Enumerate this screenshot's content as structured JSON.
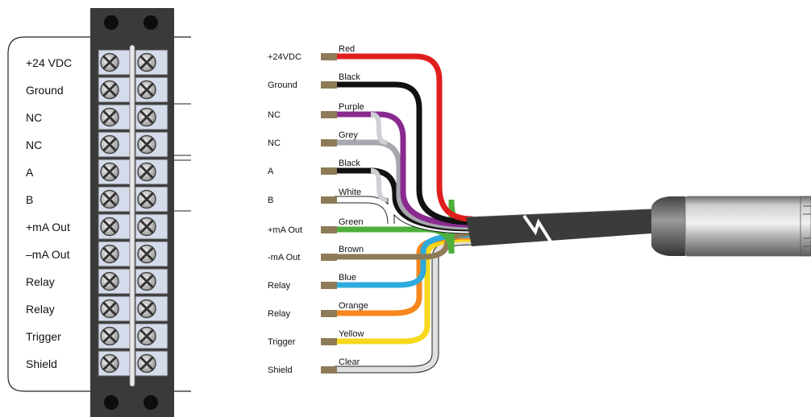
{
  "terminal_block": {
    "labels": [
      "+24 VDC",
      "Ground",
      "NC",
      "NC",
      "A",
      "B",
      "+mA Out",
      "–mA Out",
      "Relay",
      "Relay",
      "Trigger",
      "Shield"
    ]
  },
  "wires": [
    {
      "signal": "+24VDC",
      "color_name": "Red",
      "color": "#e01e1e"
    },
    {
      "signal": "Ground",
      "color_name": "Black",
      "color": "#111111"
    },
    {
      "signal": "NC",
      "color_name": "Purple",
      "color": "#8a2a8f"
    },
    {
      "signal": "NC",
      "color_name": "Grey",
      "color": "#a7a7ad"
    },
    {
      "signal": "A",
      "color_name": "Black",
      "color": "#111111"
    },
    {
      "signal": "B",
      "color_name": "White",
      "color": "#ffffff"
    },
    {
      "signal": "+mA Out",
      "color_name": "Green",
      "color": "#4caf3a"
    },
    {
      "signal": "-mA Out",
      "color_name": "Brown",
      "color": "#8e7b57"
    },
    {
      "signal": "Relay",
      "color_name": "Blue",
      "color": "#2eaadc"
    },
    {
      "signal": "Relay",
      "color_name": "Orange",
      "color": "#f7861e"
    },
    {
      "signal": "Trigger",
      "color_name": "Yellow",
      "color": "#f6d81c"
    },
    {
      "signal": "Shield",
      "color_name": "Clear",
      "color": "#e0e0e0"
    }
  ],
  "colors": {
    "terminal_body": "#3a3a3a",
    "terminal_cell": "#d4dbea",
    "cable_jacket": "#3b3b3b",
    "connector_metal": "#b8b8b8",
    "ferrule": "#8e7b57"
  }
}
